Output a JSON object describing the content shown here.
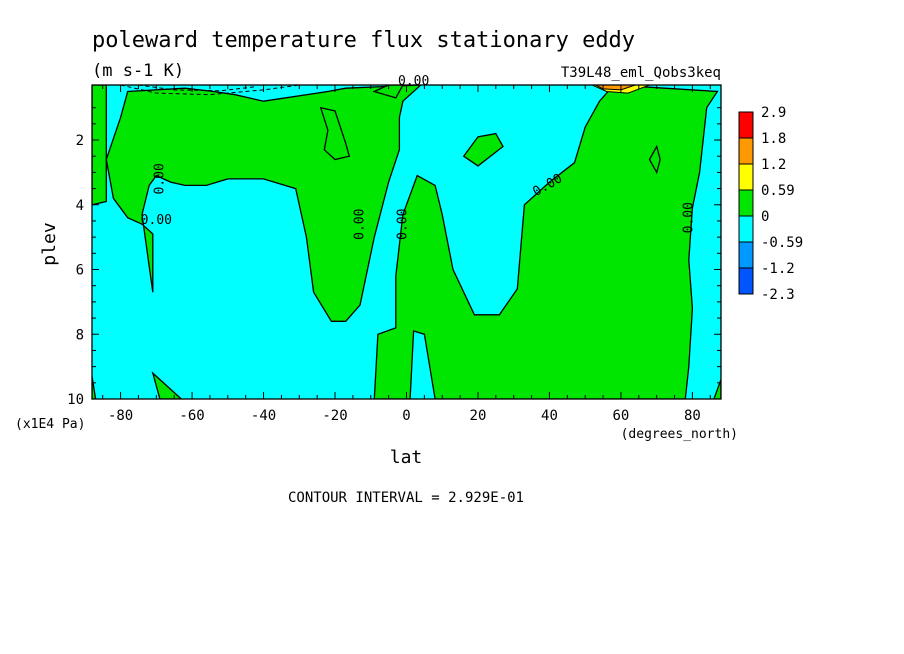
{
  "chart_data": {
    "type": "heatmap",
    "title": "poleward temperature flux stationary eddy",
    "units": "(m s-1 K)",
    "run_label": "T39L48_eml_Qobs3keq",
    "xlabel": "lat",
    "xunits": "(degrees_north)",
    "ylabel": "plev",
    "yunits": "(x1E4 Pa)",
    "xlim": [
      -88,
      88
    ],
    "ylim": [
      10,
      0.3
    ],
    "x_ticks": [
      -80,
      -60,
      -40,
      -20,
      0,
      20,
      40,
      60,
      80
    ],
    "y_ticks": [
      2,
      4,
      6,
      8,
      10
    ],
    "contour_interval_text": "CONTOUR INTERVAL = 2.929E-01",
    "contour_labels": [
      {
        "text": "0.00",
        "x": 2,
        "y": 0.3
      },
      {
        "text": "0.00",
        "x": -68,
        "y": 3.2
      },
      {
        "text": "0.00",
        "x": -70,
        "y": 4.6
      },
      {
        "text": "0.00",
        "x": -12,
        "y": 4.6
      },
      {
        "text": "0.00",
        "x": 0,
        "y": 4.6
      },
      {
        "text": "0.00",
        "x": 40,
        "y": 3.5
      },
      {
        "text": "0.00",
        "x": 80,
        "y": 4.4
      }
    ],
    "colorbar": {
      "levels": [
        "2.9",
        "1.8",
        "1.2",
        "0.59",
        "0",
        "-0.59",
        "-1.2",
        "-2.3"
      ],
      "colors": [
        "#ff0000",
        "#ff9900",
        "#ffff00",
        "#00e600",
        "#00ffff",
        "#0099ff",
        "#0055ff"
      ]
    },
    "fill_colors": {
      "negative": "#00ffff",
      "positive": "#00e600",
      "mid_positive": "#ffff00",
      "high_positive": "#ff9900"
    },
    "positive_regions": [
      [
        [
          -88,
          0.3
        ],
        [
          -84,
          0.3
        ],
        [
          -84,
          1
        ],
        [
          -84,
          3.9
        ],
        [
          -88,
          4
        ]
      ],
      [
        [
          -88,
          9.3
        ],
        [
          -87,
          10
        ],
        [
          -88,
          10
        ]
      ],
      [
        [
          -80,
          1.3
        ],
        [
          -84,
          2.6
        ],
        [
          -82,
          3.8
        ],
        [
          -78,
          4.4
        ],
        [
          -74,
          4.6
        ],
        [
          -71,
          4.9
        ],
        [
          -71,
          6.7
        ],
        [
          -74,
          4.3
        ],
        [
          -72,
          3.4
        ],
        [
          -70,
          3.1
        ],
        [
          -66,
          3.3
        ],
        [
          -62,
          3.4
        ],
        [
          -56,
          3.4
        ],
        [
          -50,
          3.2
        ],
        [
          -40,
          3.2
        ],
        [
          -31,
          3.5
        ],
        [
          -28,
          5.0
        ],
        [
          -26,
          6.7
        ],
        [
          -21,
          7.6
        ],
        [
          -17,
          7.6
        ],
        [
          -13,
          7.1
        ],
        [
          -9,
          5.0
        ],
        [
          -5,
          3.3
        ],
        [
          -2,
          2.3
        ],
        [
          -2,
          1.3
        ],
        [
          -1,
          0.8
        ],
        [
          4,
          0.3
        ],
        [
          -17,
          0.4
        ],
        [
          -22,
          0.5
        ],
        [
          -40,
          0.8
        ],
        [
          -48,
          0.6
        ],
        [
          -54,
          0.5
        ],
        [
          -62,
          0.4
        ],
        [
          -78,
          0.5
        ]
      ],
      [
        [
          -24,
          1.0
        ],
        [
          -22,
          1.7
        ],
        [
          -23,
          2.3
        ],
        [
          -20,
          2.6
        ],
        [
          -16,
          2.5
        ],
        [
          -17,
          2.1
        ],
        [
          -20,
          1.1
        ]
      ],
      [
        [
          -9,
          0.5
        ],
        [
          -5,
          0.3
        ],
        [
          -1,
          0.3
        ],
        [
          -3,
          0.7
        ]
      ],
      [
        [
          3,
          3.1
        ],
        [
          -1,
          4.3
        ],
        [
          -3,
          6.2
        ],
        [
          -3,
          7.8
        ],
        [
          -8,
          8.0
        ],
        [
          -9,
          10
        ],
        [
          1,
          10
        ],
        [
          2,
          7.9
        ],
        [
          5,
          8.0
        ],
        [
          8,
          10
        ],
        [
          78,
          10
        ],
        [
          79,
          9.0
        ],
        [
          80,
          7.2
        ],
        [
          79,
          5.7
        ],
        [
          80,
          4.1
        ],
        [
          82,
          3.0
        ],
        [
          84,
          1.0
        ],
        [
          87,
          0.5
        ],
        [
          58,
          0.3
        ],
        [
          54,
          0.8
        ],
        [
          50,
          1.6
        ],
        [
          47,
          2.7
        ],
        [
          40,
          3.3
        ],
        [
          33,
          4.0
        ],
        [
          31,
          6.6
        ],
        [
          26,
          7.4
        ],
        [
          19,
          7.4
        ],
        [
          13,
          6.0
        ],
        [
          10,
          4.3
        ],
        [
          8,
          3.4
        ]
      ],
      [
        [
          16,
          2.5
        ],
        [
          20,
          2.8
        ],
        [
          27,
          2.2
        ],
        [
          25,
          1.8
        ],
        [
          20,
          1.9
        ]
      ],
      [
        [
          -69,
          10
        ],
        [
          -71,
          9.2
        ],
        [
          -63,
          10
        ]
      ],
      [
        [
          68,
          2.6
        ],
        [
          70,
          2.2
        ],
        [
          71,
          2.6
        ],
        [
          70,
          3.0
        ]
      ],
      [
        [
          88,
          9.4
        ],
        [
          86,
          10
        ],
        [
          88,
          10
        ]
      ]
    ],
    "warm_regions": [
      [
        [
          52,
          0.3
        ],
        [
          68,
          0.3
        ],
        [
          62,
          0.55
        ],
        [
          56,
          0.5
        ]
      ]
    ],
    "hot_regions": [
      [
        [
          53,
          0.3
        ],
        [
          64,
          0.3
        ],
        [
          60,
          0.45
        ],
        [
          55,
          0.42
        ]
      ]
    ]
  }
}
